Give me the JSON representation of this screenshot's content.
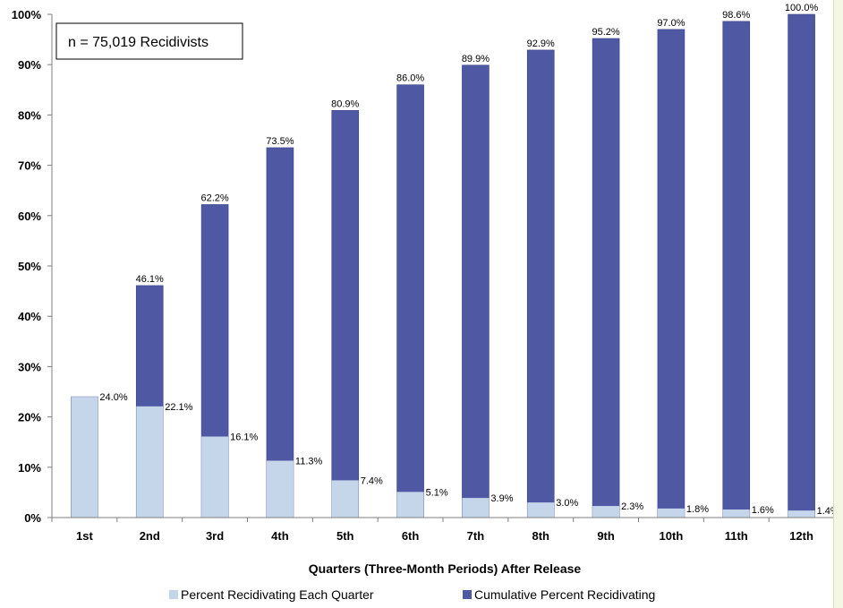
{
  "chart_data": {
    "type": "bar",
    "stacked": false,
    "categories": [
      "1st",
      "2nd",
      "3rd",
      "4th",
      "5th",
      "6th",
      "7th",
      "8th",
      "9th",
      "10th",
      "11th",
      "12th"
    ],
    "series": [
      {
        "name": "Percent Recidivating Each Quarter",
        "color": "#c5d5ea",
        "values": [
          24.0,
          22.1,
          16.1,
          11.3,
          7.4,
          5.1,
          3.9,
          3.0,
          2.3,
          1.8,
          1.6,
          1.4
        ],
        "labels": [
          "24.0%",
          "22.1%",
          "16.1%",
          "11.3%",
          "7.4%",
          "5.1%",
          "3.9%",
          "3.0%",
          "2.3%",
          "1.8%",
          "1.6%",
          "1.4%"
        ]
      },
      {
        "name": "Cumulative Percent Recidivating",
        "color": "#4e58a3",
        "values": [
          24.0,
          46.1,
          62.2,
          73.5,
          80.9,
          86.0,
          89.9,
          92.9,
          95.2,
          97.0,
          98.6,
          100.0
        ],
        "labels": [
          "",
          "46.1%",
          "62.2%",
          "73.5%",
          "80.9%",
          "86.0%",
          "89.9%",
          "92.9%",
          "95.2%",
          "97.0%",
          "98.6%",
          "100.0%"
        ]
      }
    ],
    "xlabel": "Quarters (Three-Month Periods) After Release",
    "ylabel": "",
    "ylim": [
      0,
      100
    ],
    "yticks": [
      "0%",
      "10%",
      "20%",
      "30%",
      "40%",
      "50%",
      "60%",
      "70%",
      "80%",
      "90%",
      "100%"
    ],
    "annotation": "n = 75,019 Recidivists",
    "legend_position": "bottom",
    "grid": false
  }
}
